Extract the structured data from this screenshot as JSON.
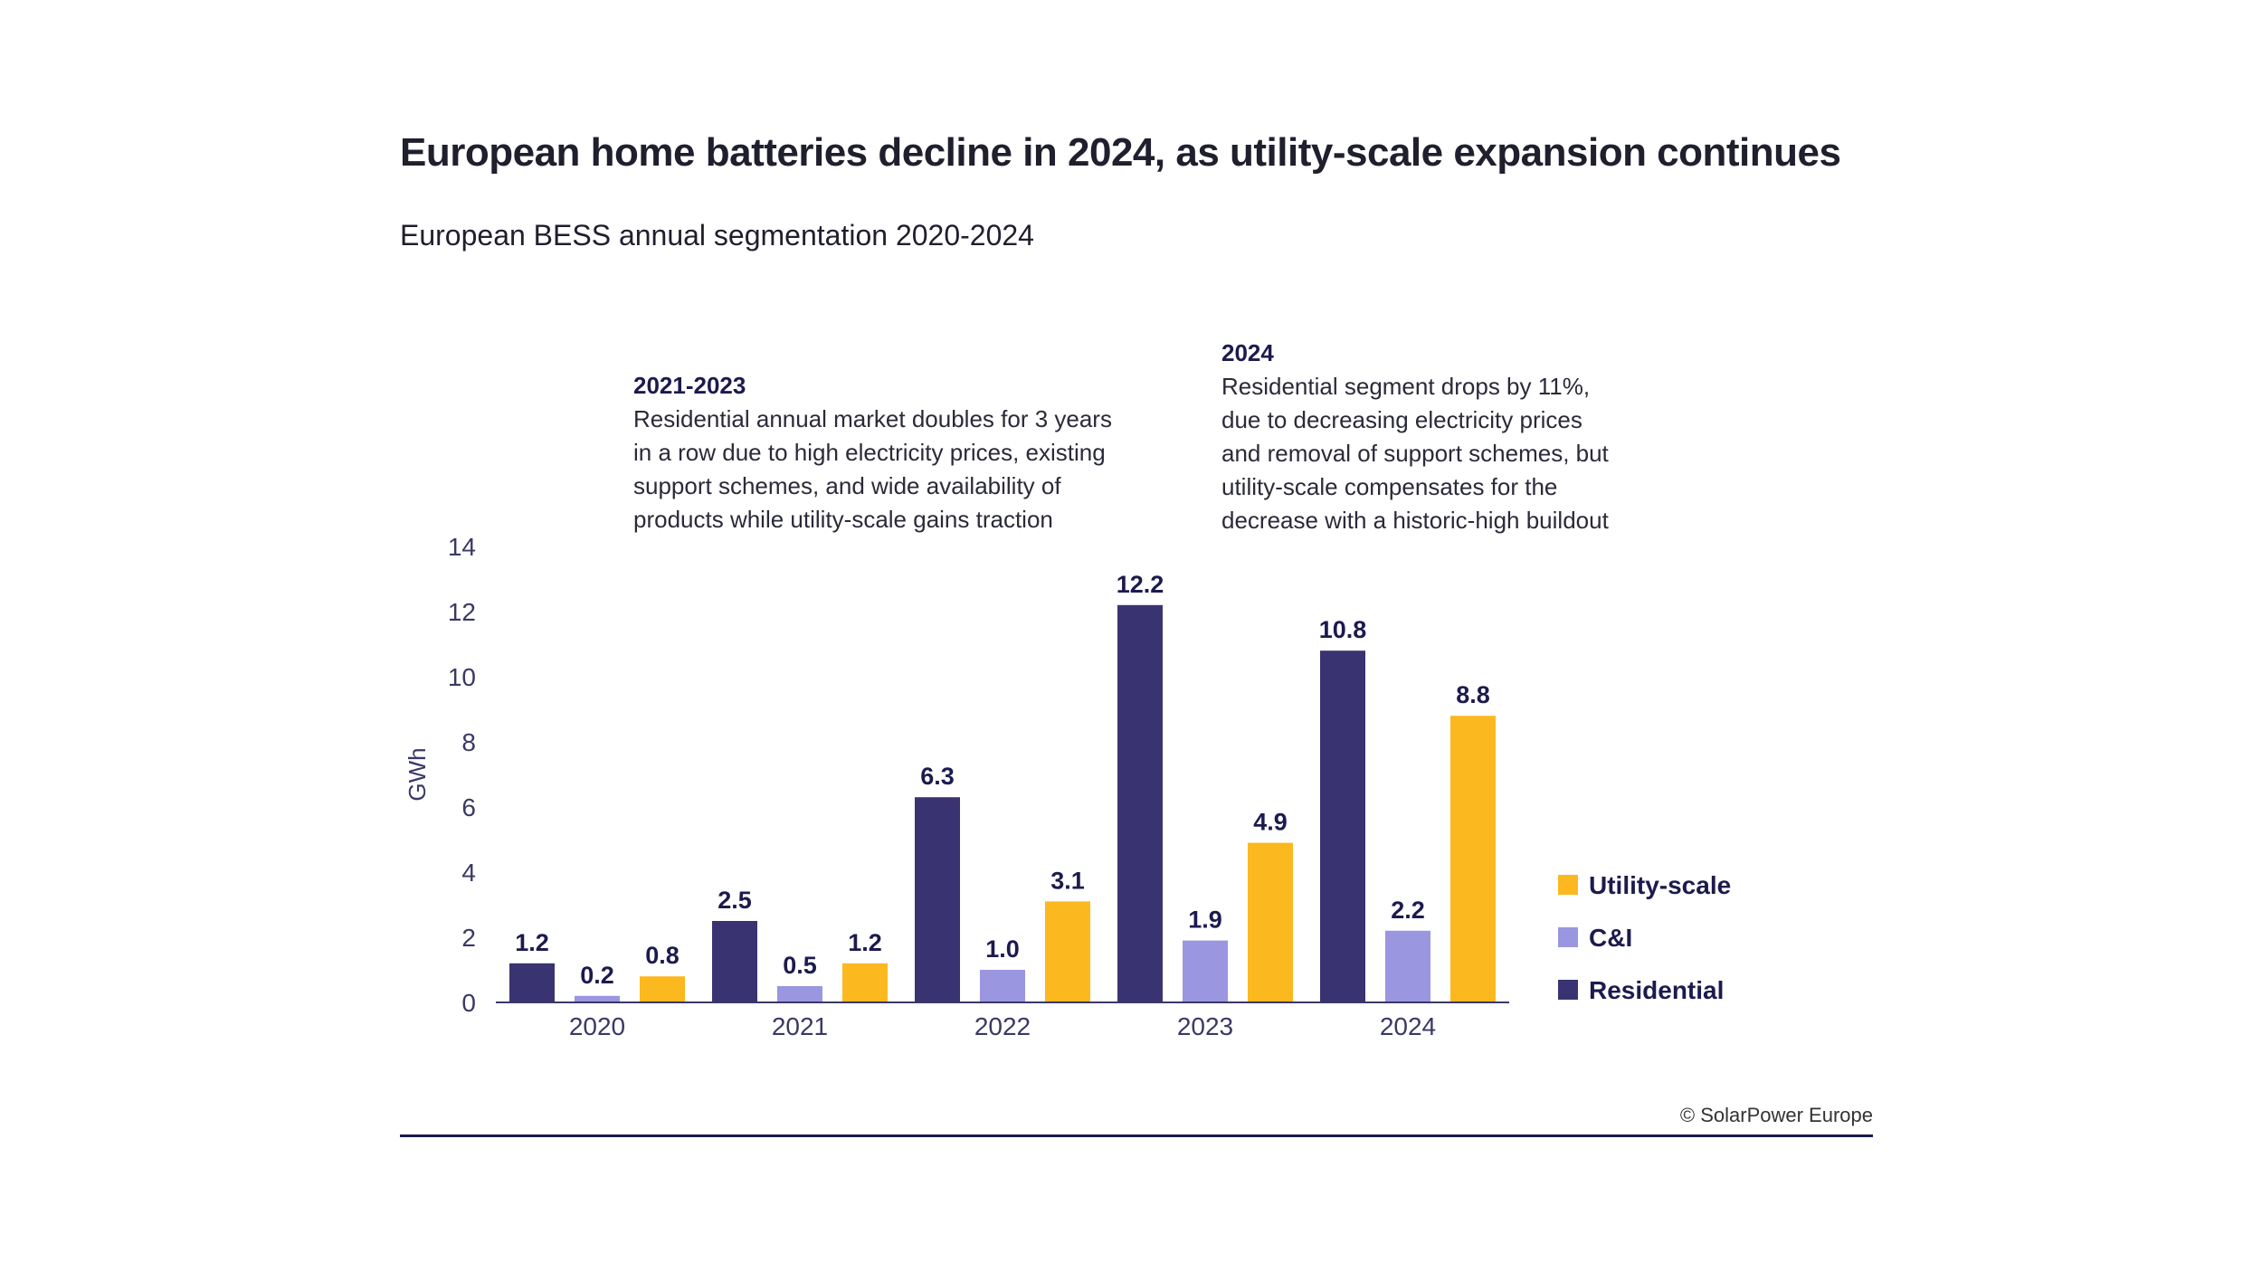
{
  "title": "European home batteries decline in 2024, as utility-scale expansion continues",
  "subtitle": "European BESS annual segmentation 2020-2024",
  "annotations": [
    {
      "heading": "2021-2023",
      "lines": [
        "Residential annual market doubles for 3 years",
        "in a row due to high electricity prices, existing",
        "support schemes, and wide availability of",
        "products while utility-scale gains traction"
      ]
    },
    {
      "heading": "2024",
      "lines": [
        "Residential segment drops by 11%,",
        "due to decreasing electricity prices",
        "and removal of support schemes, but",
        "utility-scale compensates for the",
        "decrease with a historic-high buildout"
      ]
    }
  ],
  "copyright": "© SolarPower Europe",
  "chart_data": {
    "type": "bar",
    "title": "European BESS annual segmentation 2020-2024",
    "xlabel": "",
    "ylabel": "GWh",
    "ylim": [
      0,
      14
    ],
    "yticks": [
      0,
      2,
      4,
      6,
      8,
      10,
      12,
      14
    ],
    "grid": false,
    "legend_position": "right",
    "categories": [
      "2020",
      "2021",
      "2022",
      "2023",
      "2024"
    ],
    "series": [
      {
        "name": "Residential",
        "color": "#3a3371",
        "values": [
          1.2,
          2.5,
          6.3,
          12.2,
          10.8
        ],
        "labels": [
          "1.2",
          "2.5",
          "6.3",
          "12.2",
          "10.8"
        ]
      },
      {
        "name": "C&I",
        "color": "#9a96e0",
        "values": [
          0.2,
          0.5,
          1.0,
          1.9,
          2.2
        ],
        "labels": [
          "0.2",
          "0.5",
          "1.0",
          "1.9",
          "2.2"
        ]
      },
      {
        "name": "Utility-scale",
        "color": "#fbb81f",
        "values": [
          0.8,
          1.2,
          3.1,
          4.9,
          8.8
        ],
        "labels": [
          "0.8",
          "1.2",
          "3.1",
          "4.9",
          "8.8"
        ]
      }
    ],
    "legend_order": [
      "Utility-scale",
      "C&I",
      "Residential"
    ]
  }
}
